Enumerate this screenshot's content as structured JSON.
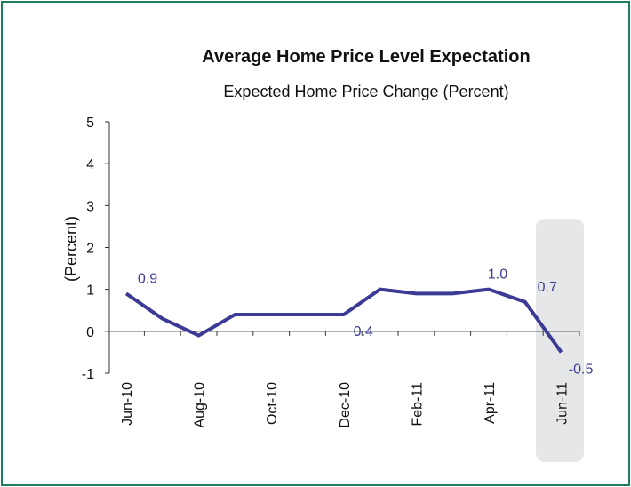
{
  "chart_data": {
    "type": "line",
    "title": "Average Home Price Level Expectation",
    "subtitle": "Expected Home Price Change (Percent)",
    "y_label": "(Percent)",
    "categories": [
      "Jun-10",
      null,
      "Aug-10",
      null,
      "Oct-10",
      null,
      "Dec-10",
      null,
      "Feb-11",
      null,
      "Apr-11",
      null,
      "Jun-11"
    ],
    "series": [
      {
        "name": "Expected Home Price Change",
        "color": "#3b3b96",
        "values": [
          0.9,
          0.3,
          -0.1,
          0.4,
          0.4,
          0.4,
          0.4,
          1.0,
          0.9,
          0.9,
          1.0,
          0.7,
          -0.5
        ],
        "value_labels": [
          "0.9",
          null,
          null,
          null,
          null,
          null,
          "0.4",
          null,
          null,
          null,
          "1.0",
          "0.7",
          "-0.5"
        ]
      }
    ],
    "ylim": [
      -1,
      5
    ],
    "yticks": [
      -1,
      0,
      1,
      2,
      3,
      4,
      5
    ]
  }
}
